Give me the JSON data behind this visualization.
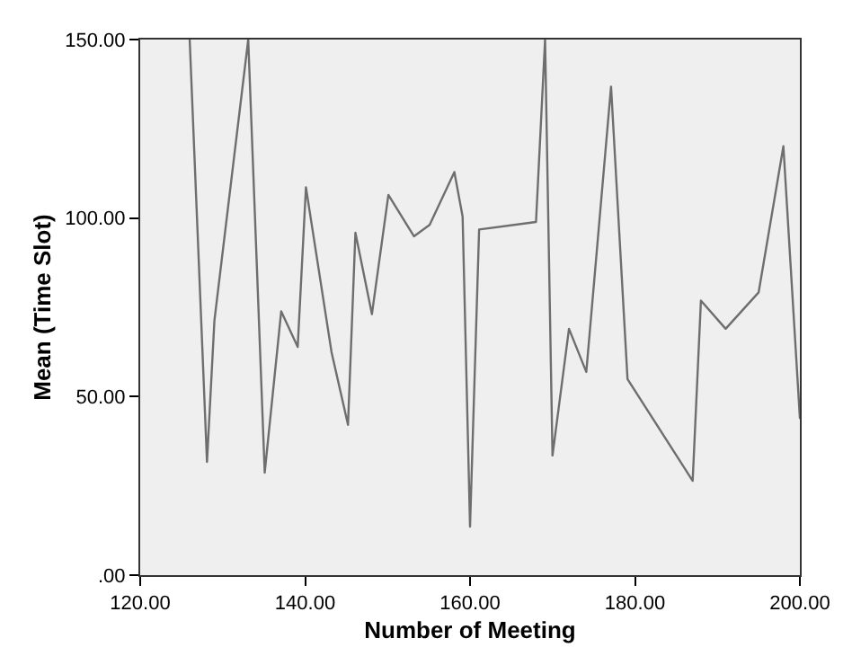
{
  "chart_data": {
    "type": "line",
    "xlabel": "Number of Meeting",
    "ylabel": "Mean (Time Slot)",
    "x": [
      126.0,
      128.1,
      129.0,
      133.1,
      135.1,
      137.1,
      139.1,
      140.1,
      143.2,
      145.2,
      146.1,
      148.1,
      150.1,
      153.2,
      155.1,
      158.1,
      159.1,
      160.0,
      161.1,
      168.0,
      169.1,
      170.0,
      172.0,
      174.1,
      177.1,
      179.1,
      187.0,
      188.0,
      191.0,
      195.0,
      198.0,
      200.0
    ],
    "series": [
      {
        "color": "#6e6e6e",
        "values": [
          150,
          31.7,
          71.3,
          150,
          28.7,
          73.9,
          63.9,
          108.6,
          62.5,
          42.1,
          95.9,
          73.1,
          106.5,
          94.9,
          98.1,
          112.9,
          100.4,
          13.6,
          96.8,
          98.9,
          150,
          33.5,
          69.0,
          56.9,
          136.8,
          54.9,
          26.4,
          76.9,
          69.0,
          79.2,
          120.1,
          44.0
        ]
      }
    ],
    "xlim": [
      120,
      200
    ],
    "ylim": [
      0,
      150
    ],
    "xticks": [
      {
        "value": 120,
        "label": "120.00"
      },
      {
        "value": 140,
        "label": "140.00"
      },
      {
        "value": 160,
        "label": "160.00"
      },
      {
        "value": 180,
        "label": "180.00"
      },
      {
        "value": 200,
        "label": "200.00"
      }
    ],
    "yticks": [
      {
        "value": 0,
        "label": ".00"
      },
      {
        "value": 50,
        "label": "50.00"
      },
      {
        "value": 100,
        "label": "100.00"
      },
      {
        "value": 150,
        "label": "150.00"
      }
    ],
    "grid": false,
    "legend": false,
    "marker": "none",
    "line_style": "solid"
  }
}
